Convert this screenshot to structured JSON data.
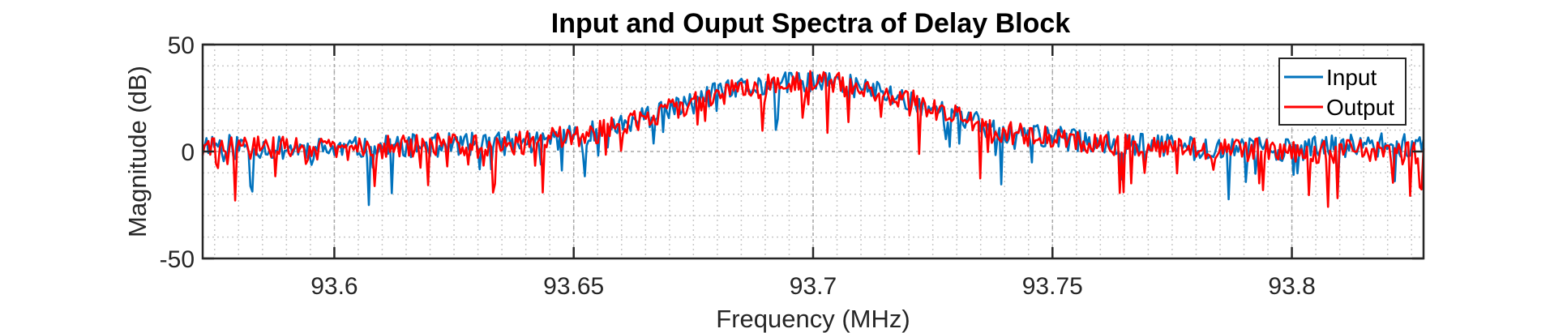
{
  "chart_data": {
    "type": "line",
    "title": "Input and Ouput Spectra of Delay Block",
    "xlabel": "Frequency (MHz)",
    "ylabel": "Magnitude (dB)",
    "xlim": [
      93.5725,
      93.8275
    ],
    "ylim": [
      -50,
      50
    ],
    "xticks": [
      93.6,
      93.65,
      93.7,
      93.75,
      93.8
    ],
    "xtick_labels": [
      "93.6",
      "93.65",
      "93.7",
      "93.75",
      "93.8"
    ],
    "yticks": [
      -50,
      0,
      50
    ],
    "ytick_labels": [
      "-50",
      "0",
      "50"
    ],
    "grid": true,
    "minor_grid": true,
    "legend_position": "top-right",
    "x_points": 640,
    "series": [
      {
        "name": "Input",
        "color": "#0072BD",
        "envelope": [
          [
            93.5725,
            4
          ],
          [
            93.585,
            2
          ],
          [
            93.6,
            1
          ],
          [
            93.62,
            3
          ],
          [
            93.64,
            4
          ],
          [
            93.655,
            9
          ],
          [
            93.67,
            19
          ],
          [
            93.68,
            27
          ],
          [
            93.69,
            31
          ],
          [
            93.7,
            33
          ],
          [
            93.71,
            30
          ],
          [
            93.72,
            24
          ],
          [
            93.73,
            16
          ],
          [
            93.74,
            9
          ],
          [
            93.76,
            4
          ],
          [
            93.78,
            2
          ],
          [
            93.8,
            1
          ],
          [
            93.815,
            3
          ],
          [
            93.8275,
            3
          ]
        ],
        "noise": 5.5,
        "seed": 11
      },
      {
        "name": "Output",
        "color": "#FF0000",
        "envelope": [
          [
            93.5725,
            1
          ],
          [
            93.585,
            2
          ],
          [
            93.6,
            1
          ],
          [
            93.62,
            3
          ],
          [
            93.64,
            4
          ],
          [
            93.655,
            9
          ],
          [
            93.67,
            19
          ],
          [
            93.68,
            27
          ],
          [
            93.69,
            31
          ],
          [
            93.7,
            33
          ],
          [
            93.71,
            30
          ],
          [
            93.72,
            24
          ],
          [
            93.73,
            16
          ],
          [
            93.74,
            9
          ],
          [
            93.76,
            4
          ],
          [
            93.78,
            2
          ],
          [
            93.8,
            0
          ],
          [
            93.815,
            0
          ],
          [
            93.8275,
            -1
          ]
        ],
        "noise": 5.5,
        "seed": 29
      }
    ]
  }
}
